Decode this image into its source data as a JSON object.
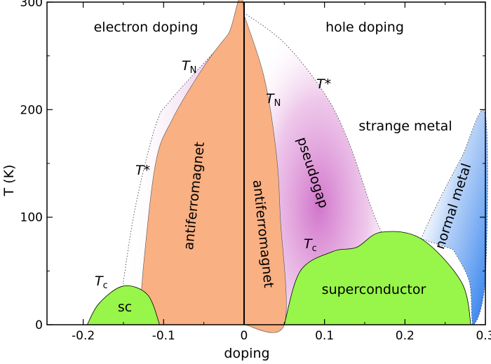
{
  "chart_data": {
    "type": "area",
    "xlabel": "doping",
    "ylabel": "T (K)",
    "xlim": [
      -0.245,
      0.3
    ],
    "ylim": [
      0,
      300
    ],
    "x_ticks": [
      {
        "value": -0.2,
        "label": "-0.2"
      },
      {
        "value": -0.1,
        "label": "-0.1"
      },
      {
        "value": 0,
        "label": "0"
      },
      {
        "value": 0.1,
        "label": "0.1"
      },
      {
        "value": 0.2,
        "label": "0.2"
      },
      {
        "value": 0.3,
        "label": "0.3"
      }
    ],
    "y_ticks": [
      {
        "value": 0,
        "label": "0"
      },
      {
        "value": 100,
        "label": "100"
      },
      {
        "value": 200,
        "label": "200"
      },
      {
        "value": 300,
        "label": "300"
      }
    ],
    "colors": {
      "antiferromagnet": "#f9b083",
      "superconductor": "#98f54a",
      "pseudogap": "#dc8fd4",
      "normal_metal": "#4a8ff0"
    },
    "regions": {
      "pseudogap_electron": [
        [
          -0.15,
          40
        ],
        [
          -0.135,
          110
        ],
        [
          -0.11,
          185
        ],
        [
          -0.09,
          210
        ],
        [
          -0.02,
          268
        ],
        [
          0,
          290
        ]
      ],
      "antiferromagnet_electron": [
        [
          -0.13,
          0
        ],
        [
          -0.125,
          55
        ],
        [
          -0.11,
          150
        ],
        [
          -0.09,
          190
        ],
        [
          -0.05,
          240
        ],
        [
          -0.02,
          270
        ],
        [
          0,
          288
        ],
        [
          0,
          0
        ]
      ],
      "pseudogap_hole": [
        [
          0,
          290
        ],
        [
          0.05,
          262
        ],
        [
          0.1,
          215
        ],
        [
          0.13,
          170
        ],
        [
          0.16,
          105
        ],
        [
          0.178,
          75
        ]
      ],
      "antiferromagnet_hole": [
        [
          0,
          288
        ],
        [
          0.025,
          230
        ],
        [
          0.04,
          160
        ],
        [
          0.045,
          100
        ],
        [
          0.05,
          0
        ],
        [
          0,
          0
        ]
      ],
      "normal_metal": [
        [
          0.22,
          80
        ],
        [
          0.24,
          112
        ],
        [
          0.27,
          155
        ],
        [
          0.3,
          195
        ],
        [
          0.3,
          45
        ],
        [
          0.285,
          0
        ],
        [
          0.28,
          40
        ],
        [
          0.26,
          70
        ]
      ],
      "superconductor_electron": [
        [
          -0.195,
          0
        ],
        [
          -0.18,
          20
        ],
        [
          -0.15,
          36
        ],
        [
          -0.12,
          28
        ],
        [
          -0.105,
          0
        ]
      ],
      "superconductor_hole": [
        [
          0.05,
          0
        ],
        [
          0.07,
          50
        ],
        [
          0.11,
          68
        ],
        [
          0.14,
          72
        ],
        [
          0.17,
          86
        ],
        [
          0.22,
          80
        ],
        [
          0.27,
          40
        ],
        [
          0.282,
          0
        ]
      ]
    },
    "labels": {
      "electron_doping": "electron doping",
      "hole_doping": "hole doping",
      "strange_metal": "strange metal",
      "normal_metal": "normal metal",
      "pseudogap": "pseudogap",
      "antiferromagnet_left": "antiferromagnet",
      "antiferromagnet_right": "antiferromagnet",
      "superconductor": "superconductor",
      "sc": "sc",
      "tn_left": {
        "main": "T",
        "sub": "N"
      },
      "tn_right": {
        "main": "T",
        "sub": "N"
      },
      "tstar_left": "T*",
      "tstar_right": "T*",
      "tc_left": {
        "main": "T",
        "sub": "c"
      },
      "tc_right": {
        "main": "T",
        "sub": "c"
      }
    }
  }
}
